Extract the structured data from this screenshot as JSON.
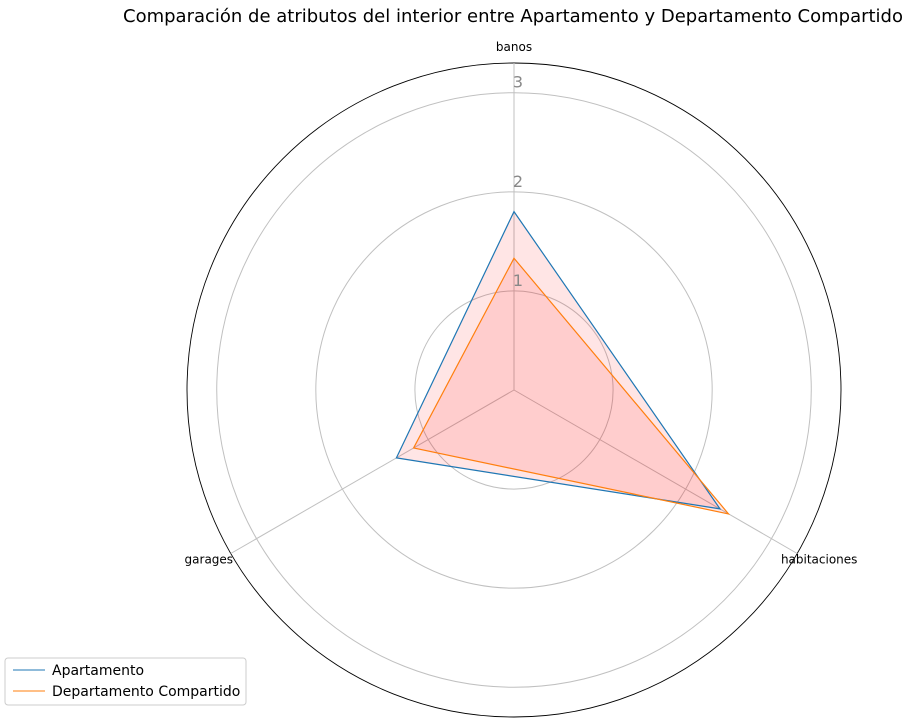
{
  "chart_data": {
    "type": "radar",
    "title": "Comparación de atributos del interior entre Apartamento y Departamento Compartido",
    "axes": [
      "banos",
      "habitaciones",
      "garages"
    ],
    "r_ticks": [
      1,
      2,
      3
    ],
    "r_max": 3.3,
    "series": [
      {
        "name": "Apartamento",
        "values": [
          1.8,
          2.4,
          1.37
        ],
        "color": "#1f77b4"
      },
      {
        "name": "Departamento Compartido",
        "values": [
          1.33,
          2.5,
          1.17
        ],
        "color": "#ff7f0e"
      }
    ],
    "fill_color": "#ff0000",
    "grid": true,
    "legend_position": "bottom-left"
  }
}
